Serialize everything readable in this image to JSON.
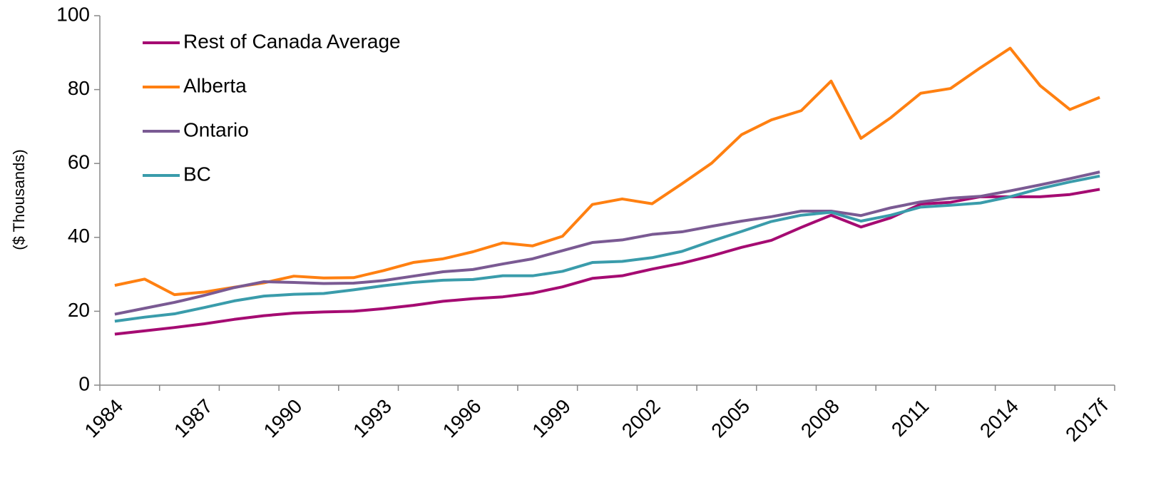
{
  "chart_data": {
    "type": "line",
    "y_label": "($ Thousands)",
    "categories": [
      "1984",
      null,
      null,
      "1987",
      null,
      null,
      "1990",
      null,
      null,
      "1993",
      null,
      null,
      "1996",
      null,
      null,
      "1999",
      null,
      null,
      "2002",
      null,
      null,
      "2005",
      null,
      null,
      "2008",
      null,
      null,
      "2011",
      null,
      null,
      "2014",
      null,
      null,
      "2017f"
    ],
    "series": [
      {
        "name": "Rest of Canada Average",
        "color": "#a50b72",
        "values": [
          13.8,
          14.7,
          15.6,
          16.6,
          17.8,
          18.8,
          19.5,
          19.8,
          20.0,
          20.7,
          21.6,
          22.7,
          23.4,
          23.9,
          24.9,
          26.6,
          28.9,
          29.6,
          31.4,
          33.0,
          35.0,
          37.3,
          39.2,
          42.7,
          46.0,
          42.8,
          45.3,
          49.0,
          49.5,
          51.0,
          51.0,
          51.0,
          51.6,
          53.0
        ]
      },
      {
        "name": "Alberta",
        "color": "#ff8011",
        "values": [
          27.0,
          28.7,
          24.5,
          25.2,
          26.5,
          27.7,
          29.5,
          29.0,
          29.1,
          31.0,
          33.2,
          34.2,
          36.1,
          38.5,
          37.7,
          40.3,
          48.9,
          50.4,
          49.1,
          54.5,
          60.1,
          67.8,
          71.8,
          74.3,
          82.3,
          66.8,
          72.4,
          79.0,
          80.3,
          85.9,
          91.2,
          81.1,
          74.6,
          77.9
        ]
      },
      {
        "name": "Ontario",
        "color": "#7a5a93",
        "values": [
          19.2,
          20.8,
          22.4,
          24.3,
          26.4,
          28.0,
          27.8,
          27.5,
          27.6,
          28.3,
          29.5,
          30.7,
          31.3,
          32.8,
          34.2,
          36.4,
          38.6,
          39.3,
          40.8,
          41.5,
          43.0,
          44.4,
          45.6,
          47.1,
          47.1,
          45.9,
          48.0,
          49.6,
          50.6,
          51.1,
          52.6,
          54.2,
          55.9,
          57.7
        ]
      },
      {
        "name": "BC",
        "color": "#3a9cab",
        "values": [
          17.3,
          18.4,
          19.3,
          21.0,
          22.8,
          24.1,
          24.6,
          24.8,
          25.8,
          26.9,
          27.8,
          28.4,
          28.6,
          29.6,
          29.6,
          30.8,
          33.2,
          33.5,
          34.5,
          36.2,
          39.0,
          41.6,
          44.3,
          46.0,
          46.8,
          44.4,
          46.0,
          48.2,
          48.7,
          49.3,
          51.0,
          53.2,
          55.0,
          56.6
        ]
      }
    ],
    "ylim": [
      0,
      100
    ],
    "yticks": [
      0,
      20,
      40,
      60,
      80,
      100
    ],
    "grid": false,
    "legend": "top-left"
  }
}
